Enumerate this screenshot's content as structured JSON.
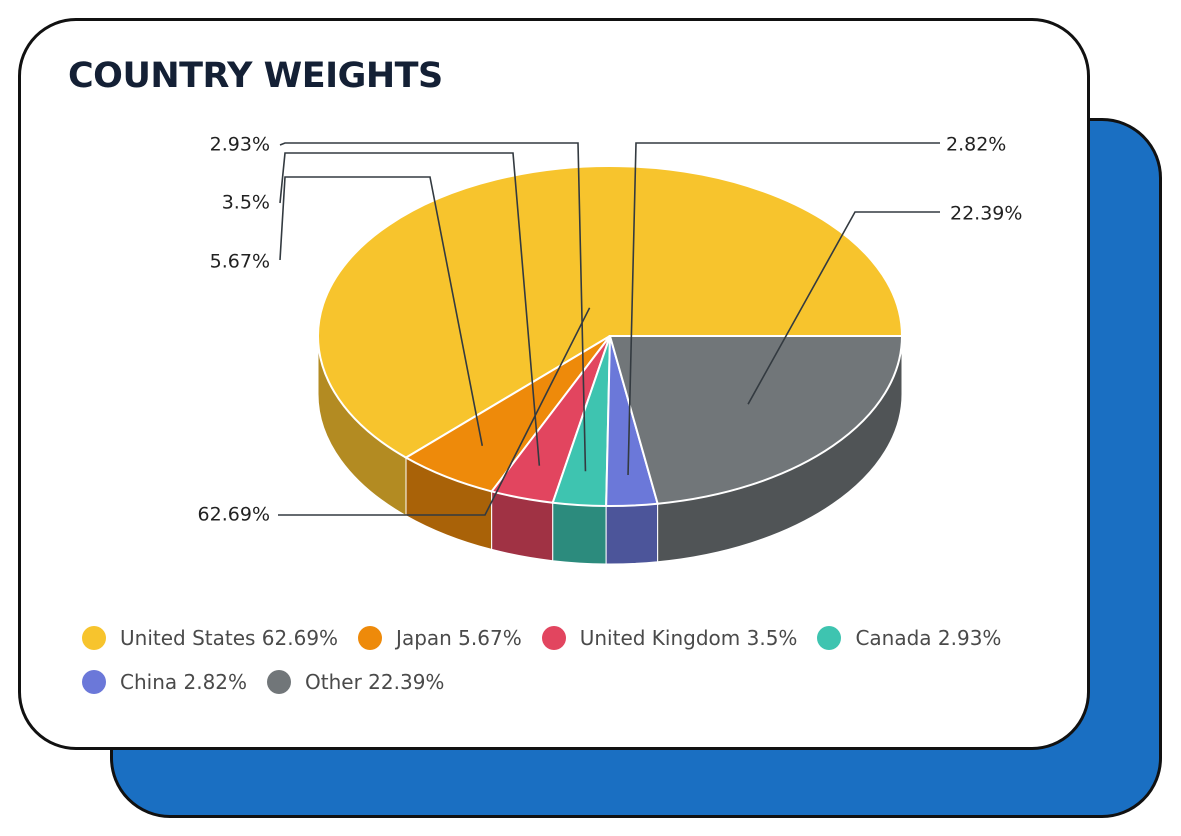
{
  "chart_data": {
    "type": "pie",
    "title": "COUNTRY WEIGHTS",
    "slices": [
      {
        "name": "United States",
        "value": 62.69,
        "label": "62.69%",
        "legend": "United States 62.69%",
        "color": "#f7c42d",
        "side": "#b38b22"
      },
      {
        "name": "Japan",
        "value": 5.67,
        "label": "5.67%",
        "legend": "Japan 5.67%",
        "color": "#ee8a0a",
        "side": "#a96208"
      },
      {
        "name": "United Kingdom",
        "value": 3.5,
        "label": "3.5%",
        "legend": "United Kingdom 3.5%",
        "color": "#e2455f",
        "side": "#a03244"
      },
      {
        "name": "Canada",
        "value": 2.93,
        "label": "2.93%",
        "legend": "Canada 2.93%",
        "color": "#3ec4b0",
        "side": "#2c8b7d"
      },
      {
        "name": "China",
        "value": 2.82,
        "label": "2.82%",
        "legend": "China 2.82%",
        "color": "#6b78d9",
        "side": "#4c559a"
      },
      {
        "name": "Other",
        "value": 22.39,
        "label": "22.39%",
        "legend": "Other 22.39%",
        "color": "#717679",
        "side": "#505456"
      }
    ],
    "legend_position": "bottom"
  }
}
